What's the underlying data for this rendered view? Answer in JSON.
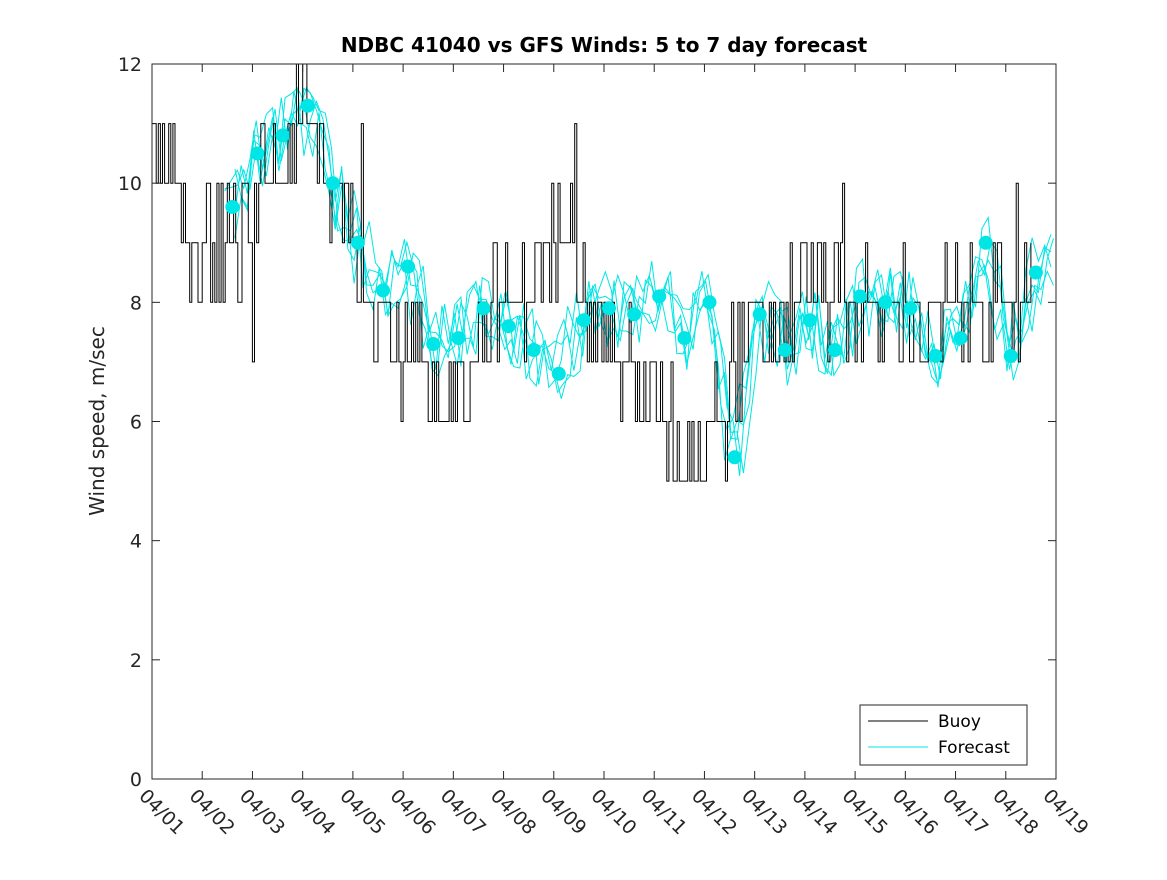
{
  "chart_data": {
    "type": "line",
    "title": "NDBC 41040 vs GFS Winds: 5 to 7 day forecast",
    "xlabel": "",
    "ylabel": "Wind speed, m/sec",
    "xlim": [
      0,
      18
    ],
    "ylim": [
      0,
      12
    ],
    "yticks": [
      0,
      2,
      4,
      6,
      8,
      10,
      12
    ],
    "xticks": [
      0,
      1,
      2,
      3,
      4,
      5,
      6,
      7,
      8,
      9,
      10,
      11,
      12,
      13,
      14,
      15,
      16,
      17,
      18
    ],
    "xtick_labels": [
      "04/01",
      "04/02",
      "04/03",
      "04/04",
      "04/05",
      "04/06",
      "04/07",
      "04/08",
      "04/09",
      "04/10",
      "04/11",
      "04/12",
      "04/13",
      "04/14",
      "04/15",
      "04/16",
      "04/17",
      "04/18",
      "04/19"
    ],
    "legend": {
      "position": "bottom-right",
      "entries": [
        "Buoy",
        "Forecast"
      ]
    },
    "colors": {
      "buoy": "#000000",
      "forecast": "#00e5e5",
      "markers": "#00e5e5"
    },
    "grid": false,
    "series": [
      {
        "name": "Buoy",
        "x_days": [
          0,
          0.25,
          0.5,
          0.75,
          1.0,
          1.25,
          1.5,
          1.75,
          2.0,
          2.25,
          2.5,
          2.75,
          3.0,
          3.25,
          3.5,
          3.75,
          4.0,
          4.25,
          4.5,
          4.75,
          5.0,
          5.25,
          5.5,
          5.75,
          6.0,
          6.25,
          6.5,
          6.75,
          7.0,
          7.25,
          7.5,
          7.75,
          8.0,
          8.25,
          8.5,
          8.75,
          9.0,
          9.25,
          9.5,
          9.75,
          10.0,
          10.25,
          10.5,
          10.75,
          11.0,
          11.25,
          11.5,
          11.75,
          12.0,
          12.25,
          12.5,
          12.75,
          13.0,
          13.25,
          13.5,
          13.75,
          14.0,
          14.25,
          14.5,
          14.75,
          15.0,
          15.25,
          15.5,
          15.75,
          16.0,
          16.25,
          16.5,
          16.75,
          17.0,
          17.25,
          17.5,
          17.75,
          18.0
        ],
        "values": [
          11,
          10,
          10,
          9,
          9,
          9,
          9,
          9,
          9.5,
          10,
          10,
          10.5,
          11,
          11,
          10,
          10,
          9,
          8.5,
          8,
          7.5,
          7,
          7,
          6.5,
          6,
          6.5,
          7,
          7.5,
          8,
          8,
          8,
          8,
          8.5,
          9,
          9,
          8.5,
          8,
          7.5,
          7,
          7,
          6.5,
          6,
          6,
          5.5,
          5.5,
          6,
          6.5,
          7,
          7,
          7.5,
          7.5,
          7.5,
          8,
          8.5,
          8.5,
          8,
          8,
          8,
          8,
          7.5,
          8,
          8,
          7.5,
          7.5,
          8,
          8,
          8,
          8,
          8,
          7.5,
          8,
          8,
          8,
          8
        ]
      },
      {
        "name": "Forecast",
        "x_days": [
          1.6,
          2.1,
          2.6,
          3.1,
          3.6,
          4.1,
          4.6,
          5.1,
          5.6,
          6.1,
          6.6,
          7.1,
          7.6,
          8.1,
          8.6,
          9.1,
          9.6,
          10.1,
          10.6,
          11.1,
          11.6,
          12.1,
          12.6,
          13.1,
          13.6,
          14.1,
          14.6,
          15.1,
          15.6,
          16.1,
          16.6,
          17.1,
          17.6
        ],
        "values": [
          9.6,
          10.5,
          10.8,
          11.3,
          10.0,
          9.0,
          8.2,
          8.6,
          7.3,
          7.4,
          7.9,
          7.6,
          7.2,
          6.8,
          7.7,
          7.9,
          7.8,
          8.1,
          7.4,
          8.0,
          5.4,
          7.8,
          7.2,
          7.7,
          7.2,
          8.1,
          8.0,
          7.9,
          7.1,
          7.4,
          9.0,
          7.1,
          8.5
        ]
      }
    ]
  }
}
